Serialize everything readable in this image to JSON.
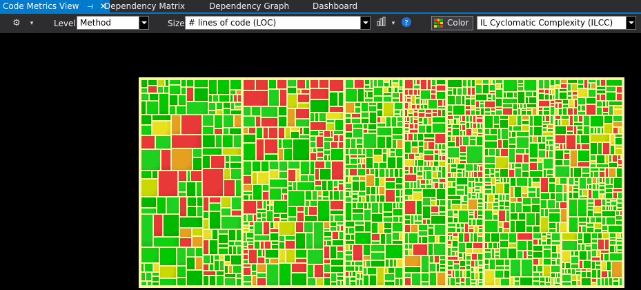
{
  "tabs": [
    {
      "label": "Code Metrics View",
      "active": true
    },
    {
      "label": "Dependency Matrix",
      "active": false
    },
    {
      "label": "Dependency Graph",
      "active": false
    },
    {
      "label": "Dashboard",
      "active": false
    }
  ],
  "toolbar": {
    "level_label": "Level",
    "level_value": "Method",
    "size_label": "Size",
    "size_value": "# lines of code (LOC)",
    "color_button_label": "Color",
    "color_value": "IL Cyclomatic Complexity (ILCC)"
  },
  "icons": {
    "tab_pin": "pin-icon",
    "tab_close": "close-icon",
    "options": "options-icon",
    "chart": "bar-chart-icon",
    "help": "help-icon"
  },
  "colors": {
    "low_metric": "#00c000",
    "mid_metric": "#c8d800",
    "high_metric": "#e83838",
    "treemap_border": "#fff7a8",
    "accent": "#007acc"
  }
}
